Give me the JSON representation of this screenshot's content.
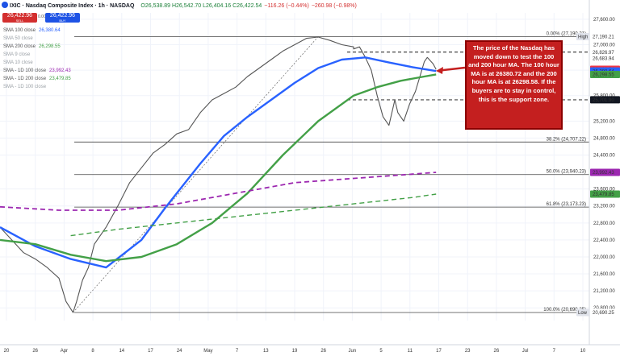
{
  "header": {
    "title": "IXIC · Nasdaq Composite Index · 1h · NASDAQ",
    "ohlc": "O26,538.89 H26,542.70 L26,404.16 C26,422.54",
    "change": "−116.26 (−0.44%)",
    "volume_change": "−260.98 (−0.98%)",
    "sell_price": "26,422.96",
    "sell_label": "SELL",
    "buy_price": "26,422.96",
    "buy_label": "BUY",
    "spread": "0.00"
  },
  "legend": [
    {
      "label": "SMA 100 close",
      "value": "26,380.64",
      "color": "#2962ff",
      "dim": false
    },
    {
      "label": "SMA 50 close",
      "value": "",
      "color": "",
      "dim": true
    },
    {
      "label": "SMA 200 close",
      "value": "26,298.55",
      "color": "#43a047",
      "dim": false
    },
    {
      "label": "SMA 9 close",
      "value": "",
      "color": "",
      "dim": true
    },
    {
      "label": "SMA 10 close",
      "value": "",
      "color": "",
      "dim": true
    },
    {
      "label": "SMA - 1D 100 close",
      "value": "23,992.43",
      "color": "#9c27b0",
      "dim": false
    },
    {
      "label": "SMA - 1D 200 close",
      "value": "23,479.85",
      "color": "#43a047",
      "dim": false
    },
    {
      "label": "SMA - 1D 100 close",
      "value": "",
      "color": "",
      "dim": true
    }
  ],
  "annotation": "The price of the Nasdaq has moved down to test the 100 and 200 hour MA. The 100 hour MA is at 26380.72 and the 200 hour MA is at 26298.58. If the buyers are to stay in control, this is the support zone.",
  "colors": {
    "price": "#555555",
    "sma100h": "#2962ff",
    "sma200h": "#43a047",
    "sma100d": "#9c27b0",
    "sma200d": "#43a047",
    "annotation_bg": "#c41f1f",
    "arrow": "#c41f1f"
  },
  "chart_data": {
    "type": "line",
    "title": "",
    "ylim": [
      20500,
      27750
    ],
    "yticks": [
      {
        "v": 27600,
        "label": "27,600.00"
      },
      {
        "v": 27000,
        "label": "27,000.00"
      },
      {
        "v": 26400,
        "label": "26,400.00"
      },
      {
        "v": 25800,
        "label": "25,800.00"
      },
      {
        "v": 25200,
        "label": "25,200.00"
      },
      {
        "v": 24800,
        "label": "24,800.00"
      },
      {
        "v": 24400,
        "label": "24,400.00"
      },
      {
        "v": 23600,
        "label": "23,600.00"
      },
      {
        "v": 23200,
        "label": "23,200.00"
      },
      {
        "v": 22800,
        "label": "22,800.00"
      },
      {
        "v": 22400,
        "label": "22,400.00"
      },
      {
        "v": 22000,
        "label": "22,000.00"
      },
      {
        "v": 21600,
        "label": "21,600.00"
      },
      {
        "v": 21200,
        "label": "21,200.00"
      },
      {
        "v": 20800,
        "label": "20,800.00"
      }
    ],
    "xticks": [
      "20",
      "26",
      "Apr",
      "8",
      "14",
      "17",
      "24",
      "May",
      "7",
      "13",
      "19",
      "26",
      "Jun",
      "5",
      "11",
      "17",
      "23",
      "26",
      "Jul",
      "7",
      "10"
    ],
    "hlines": [
      {
        "v": 27190.21,
        "label": "0.00% (27,190.21)",
        "style": "solid"
      },
      {
        "v": 26826.97,
        "label": "",
        "style": "dash"
      },
      {
        "v": 25701.9,
        "label": "",
        "style": "dash"
      },
      {
        "v": 24707.22,
        "label": "38.2% (24,707.22)",
        "style": "solid"
      },
      {
        "v": 23940.23,
        "label": "50.0% (23,940.23)",
        "style": "solid"
      },
      {
        "v": 23173.23,
        "label": "61.8% (23,173.23)",
        "style": "solid"
      },
      {
        "v": 20690.25,
        "label": "100.0% (20,690.25)",
        "style": "solid"
      }
    ],
    "price_tags": [
      {
        "v": 27190.21,
        "label": "27,190.21",
        "bg": "#ffffff",
        "fg": "#131722",
        "tag": "High"
      },
      {
        "v": 26826.97,
        "label": "26,826.97",
        "bg": "#ffffff",
        "fg": "#131722",
        "tag": ""
      },
      {
        "v": 26683.94,
        "label": "26,683.94",
        "bg": "#ffffff",
        "fg": "#131722",
        "tag": ""
      },
      {
        "v": 26422.54,
        "label": "26,422.54",
        "bg": "#f23645",
        "fg": "#ffffff",
        "tag": ""
      },
      {
        "v": 26380.64,
        "label": "26,380.64",
        "bg": "#2962ff",
        "fg": "#ffffff",
        "tag": ""
      },
      {
        "v": 26298.55,
        "label": "26,298.55",
        "bg": "#43a047",
        "fg": "#ffffff",
        "tag": ""
      },
      {
        "v": 25701.9,
        "label": "25,701.90",
        "bg": "#131722",
        "fg": "#ffffff",
        "tag": ""
      },
      {
        "v": 23992.43,
        "label": "23,992.43",
        "bg": "#9c27b0",
        "fg": "#ffffff",
        "tag": ""
      },
      {
        "v": 23479.85,
        "label": "23,479.85",
        "bg": "#43a047",
        "fg": "#ffffff",
        "tag": ""
      },
      {
        "v": 20690.25,
        "label": "20,690.25",
        "bg": "#ffffff",
        "fg": "#131722",
        "tag": "Low"
      }
    ],
    "series": [
      {
        "name": "Nasdaq Composite Index",
        "x": [
          0,
          0.02,
          0.04,
          0.06,
          0.08,
          0.1,
          0.112,
          0.124,
          0.13,
          0.14,
          0.15,
          0.16,
          0.18,
          0.2,
          0.22,
          0.24,
          0.26,
          0.28,
          0.3,
          0.32,
          0.34,
          0.36,
          0.38,
          0.4,
          0.42,
          0.44,
          0.46,
          0.48,
          0.5,
          0.52,
          0.54,
          0.56,
          0.58,
          0.6,
          0.6,
          0.61,
          0.62,
          0.63,
          0.64,
          0.65,
          0.66,
          0.67,
          0.675,
          0.685,
          0.695,
          0.705,
          0.72,
          0.725,
          0.735,
          0.74
        ],
        "values": [
          22700,
          22400,
          22100,
          21950,
          21750,
          21500,
          20950,
          20690,
          20950,
          21450,
          21750,
          22300,
          22700,
          23200,
          23750,
          24100,
          24450,
          24650,
          24900,
          25000,
          25400,
          25700,
          25850,
          26000,
          26250,
          26450,
          26650,
          26850,
          27000,
          27150,
          27180,
          27100,
          27000,
          26950,
          26900,
          26950,
          26700,
          26400,
          25800,
          25300,
          25100,
          25700,
          25400,
          25200,
          25600,
          25900,
          26600,
          26700,
          26550,
          26420
        ]
      },
      {
        "name": "SMA 100 close",
        "x": [
          0,
          0.06,
          0.12,
          0.18,
          0.24,
          0.28,
          0.3,
          0.34,
          0.38,
          0.42,
          0.46,
          0.5,
          0.54,
          0.58,
          0.62,
          0.66,
          0.7,
          0.74
        ],
        "values": [
          22700,
          22250,
          21950,
          21750,
          22400,
          23150,
          23500,
          24200,
          24850,
          25300,
          25700,
          26100,
          26450,
          26650,
          26700,
          26580,
          26470,
          26380
        ]
      },
      {
        "name": "SMA 200 close",
        "x": [
          0,
          0.06,
          0.12,
          0.18,
          0.24,
          0.3,
          0.36,
          0.42,
          0.48,
          0.54,
          0.6,
          0.64,
          0.68,
          0.72,
          0.74
        ],
        "values": [
          22400,
          22300,
          22050,
          21900,
          22000,
          22300,
          22800,
          23500,
          24400,
          25200,
          25800,
          26000,
          26150,
          26250,
          26300
        ]
      },
      {
        "name": "SMA - 1D 100 close",
        "x": [
          0,
          0.1,
          0.2,
          0.3,
          0.4,
          0.5,
          0.6,
          0.7,
          0.74
        ],
        "values": [
          23180,
          23100,
          23100,
          23250,
          23500,
          23750,
          23850,
          23950,
          23992
        ]
      },
      {
        "name": "SMA - 1D 200 close",
        "x": [
          0.12,
          0.2,
          0.3,
          0.4,
          0.5,
          0.6,
          0.7,
          0.74
        ],
        "values": [
          22500,
          22650,
          22800,
          22950,
          23100,
          23250,
          23400,
          23480
        ]
      }
    ]
  }
}
